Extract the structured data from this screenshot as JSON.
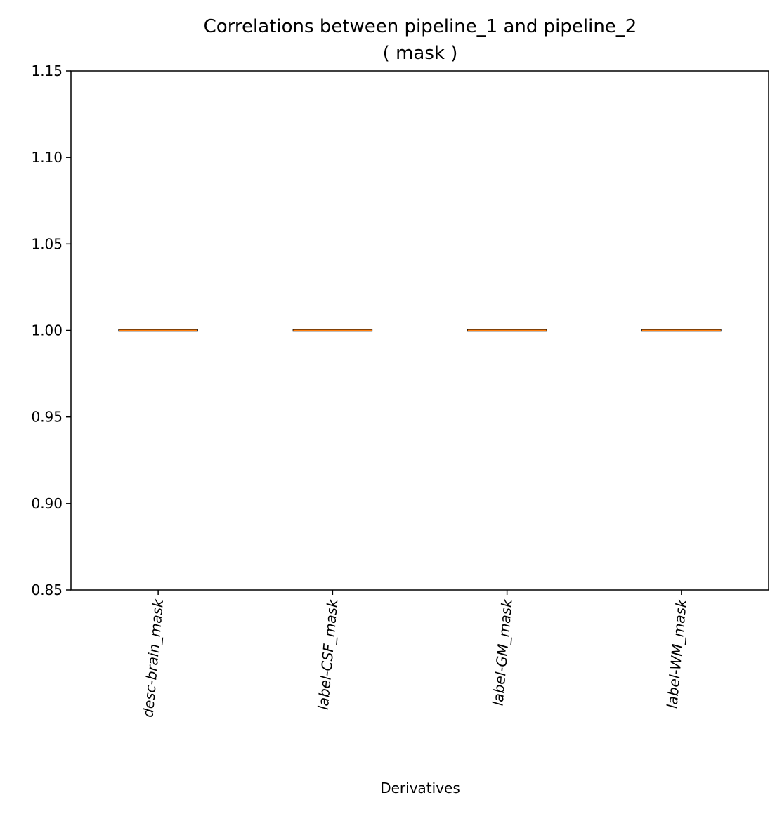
{
  "chart_data": {
    "type": "box",
    "title": "Correlations between pipeline_1 and pipeline_2",
    "subtitle": "( mask )",
    "xlabel": "Derivatives",
    "ylabel": "",
    "ylim": [
      0.85,
      1.15
    ],
    "yticks": [
      0.85,
      0.9,
      0.95,
      1.0,
      1.05,
      1.1,
      1.15
    ],
    "ytick_labels": [
      "0.85",
      "0.90",
      "0.95",
      "1.00",
      "1.05",
      "1.10",
      "1.15"
    ],
    "categories": [
      "desc-brain_mask",
      "label-CSF_mask",
      "label-GM_mask",
      "label-WM_mask"
    ],
    "boxes": [
      {
        "min": 1.0,
        "q1": 1.0,
        "median": 1.0,
        "q3": 1.0,
        "max": 1.0
      },
      {
        "min": 1.0,
        "q1": 1.0,
        "median": 1.0,
        "q3": 1.0,
        "max": 1.0
      },
      {
        "min": 1.0,
        "q1": 1.0,
        "median": 1.0,
        "q3": 1.0,
        "max": 1.0
      },
      {
        "min": 1.0,
        "q1": 1.0,
        "median": 1.0,
        "q3": 1.0,
        "max": 1.0
      }
    ],
    "grid": false,
    "legend": "none",
    "colors": {
      "box": "#000000",
      "median": "#ff7f0e",
      "axes": "#000000"
    }
  }
}
